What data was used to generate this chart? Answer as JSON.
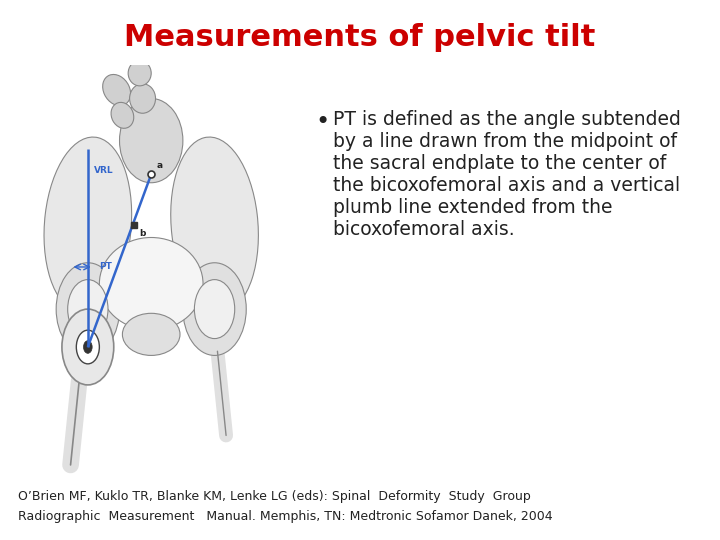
{
  "title": "Measurements of pelvic tilt",
  "title_color": "#cc0000",
  "title_fontsize": 22,
  "title_fontweight": "bold",
  "bullet_text_lines": [
    "PT is defined as the angle subtended",
    "by a line drawn from the midpoint of",
    "the sacral endplate to the center of",
    "the bicoxofemoral axis and a vertical",
    "plumb line extended from the",
    "bicoxofemoral axis."
  ],
  "bullet_fontsize": 13.5,
  "bullet_color": "#222222",
  "footer_line1": "O’Brien MF, Kuklo TR, Blanke KM, Lenke LG (eds): Spinal  Deformity  Study  Group",
  "footer_line2": "Radiographic  Measurement   Manual. Memphis, TN: Medtronic Sofamor Danek, 2004",
  "footer_fontsize": 9,
  "footer_color": "#222222",
  "background_color": "#ffffff"
}
